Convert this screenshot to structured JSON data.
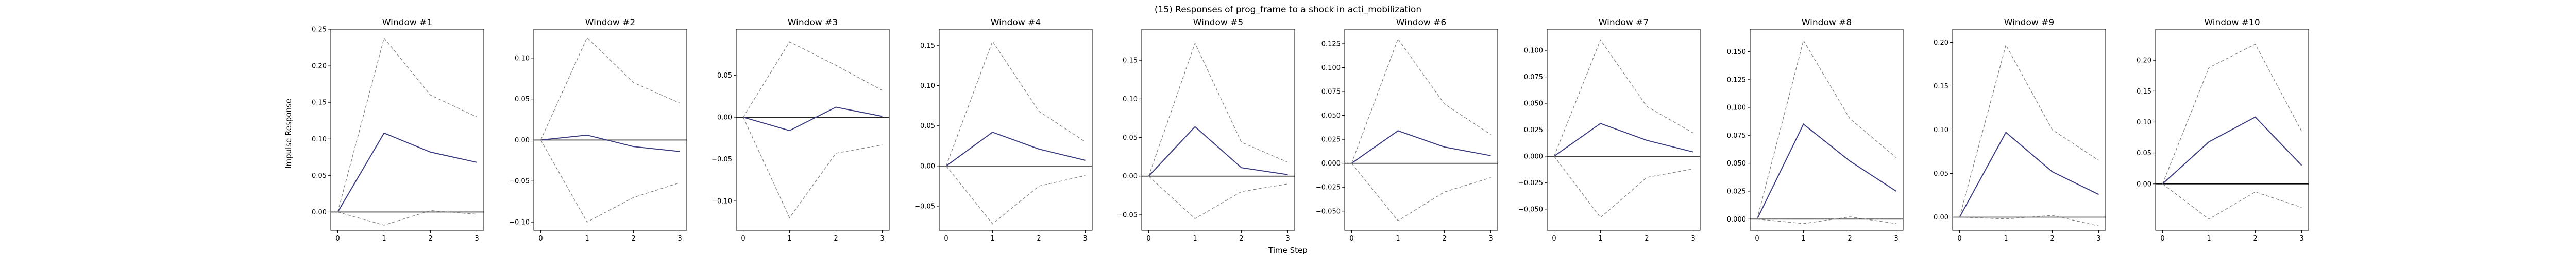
{
  "title": "(15) Responses of prog_frame to a shock in acti_mobilization",
  "chart_data": {
    "type": "line",
    "title": "(15) Responses of prog_frame to a shock in acti_mobilization",
    "xlabel": "Time Step",
    "ylabel": "Impulse Response",
    "x": [
      0,
      1,
      2,
      3
    ],
    "colors": {
      "response": "#3b3b80",
      "bands": "#808080",
      "zero": "#000000"
    },
    "panels": [
      {
        "title": "Window #1",
        "ylim": [
          -0.025,
          0.25
        ],
        "yticks": [
          0.0,
          0.05,
          0.1,
          0.15,
          0.2,
          0.25
        ],
        "tick_format": "0.00",
        "series": [
          {
            "name": "response",
            "values": [
              0.0,
              0.108,
              0.082,
              0.068
            ]
          },
          {
            "name": "upper",
            "values": [
              0.0,
              0.238,
              0.16,
              0.13
            ]
          },
          {
            "name": "lower",
            "values": [
              0.0,
              -0.018,
              0.002,
              -0.003
            ]
          }
        ]
      },
      {
        "title": "Window #2",
        "ylim": [
          -0.11,
          0.135
        ],
        "yticks": [
          -0.1,
          -0.05,
          0.0,
          0.05,
          0.1
        ],
        "tick_format": "0.00",
        "series": [
          {
            "name": "response",
            "values": [
              0.0,
              0.006,
              -0.008,
              -0.014
            ]
          },
          {
            "name": "upper",
            "values": [
              0.0,
              0.125,
              0.07,
              0.045
            ]
          },
          {
            "name": "lower",
            "values": [
              0.0,
              -0.1,
              -0.07,
              -0.052
            ]
          }
        ]
      },
      {
        "title": "Window #3",
        "ylim": [
          -0.135,
          0.105
        ],
        "yticks": [
          -0.1,
          -0.05,
          0.0,
          0.05
        ],
        "tick_format": "0.00",
        "series": [
          {
            "name": "response",
            "values": [
              0.0,
              -0.016,
              0.012,
              0.001
            ]
          },
          {
            "name": "upper",
            "values": [
              0.0,
              0.09,
              0.062,
              0.032
            ]
          },
          {
            "name": "lower",
            "values": [
              0.0,
              -0.12,
              -0.043,
              -0.033
            ]
          }
        ]
      },
      {
        "title": "Window #4",
        "ylim": [
          -0.08,
          0.17
        ],
        "yticks": [
          -0.05,
          0.0,
          0.05,
          0.1,
          0.15
        ],
        "tick_format": "0.00",
        "series": [
          {
            "name": "response",
            "values": [
              0.0,
              0.042,
              0.021,
              0.007
            ]
          },
          {
            "name": "upper",
            "values": [
              0.0,
              0.155,
              0.068,
              0.03
            ]
          },
          {
            "name": "lower",
            "values": [
              0.0,
              -0.072,
              -0.025,
              -0.012
            ]
          }
        ]
      },
      {
        "title": "Window #5",
        "ylim": [
          -0.07,
          0.19
        ],
        "yticks": [
          -0.05,
          0.0,
          0.05,
          0.1,
          0.15
        ],
        "tick_format": "0.00",
        "series": [
          {
            "name": "response",
            "values": [
              0.0,
              0.064,
              0.011,
              0.002
            ]
          },
          {
            "name": "upper",
            "values": [
              0.0,
              0.172,
              0.044,
              0.018
            ]
          },
          {
            "name": "lower",
            "values": [
              0.0,
              -0.055,
              -0.02,
              -0.01
            ]
          }
        ]
      },
      {
        "title": "Window #6",
        "ylim": [
          -0.07,
          0.14
        ],
        "yticks": [
          -0.05,
          -0.025,
          0.0,
          0.025,
          0.05,
          0.075,
          0.1,
          0.125
        ],
        "tick_format": "0.000",
        "series": [
          {
            "name": "response",
            "values": [
              0.0,
              0.034,
              0.017,
              0.008
            ]
          },
          {
            "name": "upper",
            "values": [
              0.0,
              0.13,
              0.062,
              0.03
            ]
          },
          {
            "name": "lower",
            "values": [
              0.0,
              -0.06,
              -0.03,
              -0.015
            ]
          }
        ]
      },
      {
        "title": "Window #7",
        "ylim": [
          -0.07,
          0.12
        ],
        "yticks": [
          -0.05,
          -0.025,
          0.0,
          0.025,
          0.05,
          0.075,
          0.1
        ],
        "tick_format": "0.000",
        "series": [
          {
            "name": "response",
            "values": [
              0.0,
              0.031,
              0.015,
              0.004
            ]
          },
          {
            "name": "upper",
            "values": [
              0.0,
              0.11,
              0.047,
              0.022
            ]
          },
          {
            "name": "lower",
            "values": [
              0.0,
              -0.058,
              -0.02,
              -0.012
            ]
          }
        ]
      },
      {
        "title": "Window #8",
        "ylim": [
          -0.01,
          0.17
        ],
        "yticks": [
          0.0,
          0.025,
          0.05,
          0.075,
          0.1,
          0.125,
          0.15
        ],
        "tick_format": "0.000",
        "series": [
          {
            "name": "response",
            "values": [
              0.0,
              0.085,
              0.052,
              0.025
            ]
          },
          {
            "name": "upper",
            "values": [
              0.0,
              0.16,
              0.09,
              0.055
            ]
          },
          {
            "name": "lower",
            "values": [
              0.0,
              -0.004,
              0.002,
              -0.004
            ]
          }
        ]
      },
      {
        "title": "Window #9",
        "ylim": [
          -0.015,
          0.215
        ],
        "yticks": [
          0.0,
          0.05,
          0.1,
          0.15,
          0.2
        ],
        "tick_format": "0.00",
        "series": [
          {
            "name": "response",
            "values": [
              0.0,
              0.097,
              0.052,
              0.026
            ]
          },
          {
            "name": "upper",
            "values": [
              0.0,
              0.197,
              0.1,
              0.065
            ]
          },
          {
            "name": "lower",
            "values": [
              0.0,
              -0.002,
              0.002,
              -0.01
            ]
          }
        ]
      },
      {
        "title": "Window #10",
        "ylim": [
          -0.075,
          0.25
        ],
        "yticks": [
          0.0,
          0.05,
          0.1,
          0.15,
          0.2
        ],
        "tick_format": "0.00",
        "series": [
          {
            "name": "response",
            "values": [
              0.0,
              0.068,
              0.108,
              0.03
            ]
          },
          {
            "name": "upper",
            "values": [
              0.0,
              0.188,
              0.226,
              0.085
            ]
          },
          {
            "name": "lower",
            "values": [
              0.0,
              -0.057,
              -0.013,
              -0.038
            ]
          }
        ]
      }
    ]
  }
}
